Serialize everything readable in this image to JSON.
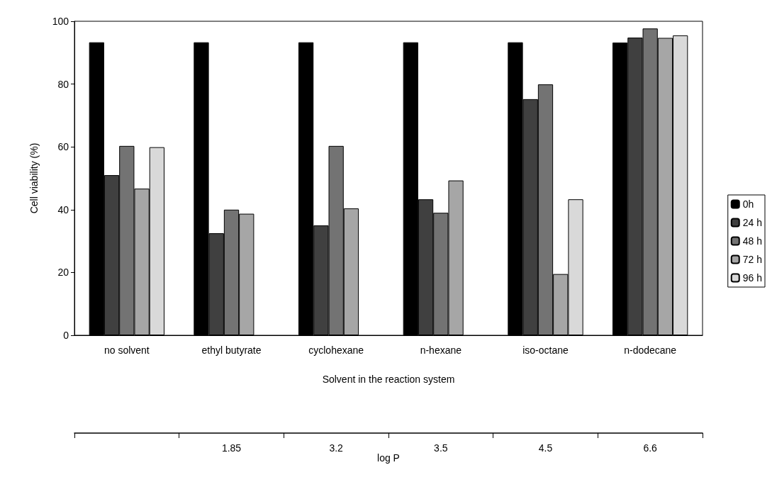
{
  "chart_data": {
    "type": "bar",
    "xlabel": "Solvent in the reaction system",
    "ylabel": "Cell viability (%)",
    "categories": [
      "no solvent",
      "ethyl butyrate",
      "cyclohexane",
      "n-hexane",
      "iso-octane",
      "n-dodecane"
    ],
    "annotations": [
      "1.85",
      "3.2",
      "3.5",
      "4.5",
      "6.6",
      "log P"
    ],
    "series": [
      {
        "name": "0h",
        "color": "#000000",
        "values": [
          93.3,
          93.3,
          93.3,
          93.3,
          93.3,
          93.2
        ]
      },
      {
        "name": "24 h",
        "color": "#404040",
        "values": [
          51,
          32.5,
          35,
          43.3,
          75.2,
          94.8
        ]
      },
      {
        "name": "48 h",
        "color": "#737373",
        "values": [
          60.3,
          40,
          60.3,
          39,
          79.9,
          97.7
        ]
      },
      {
        "name": "72 h",
        "color": "#a6a6a6",
        "values": [
          46.7,
          38.7,
          40.4,
          49.3,
          19.5,
          94.7
        ]
      },
      {
        "name": "96 h",
        "color": "#d9d9d9",
        "values": [
          59.9,
          null,
          null,
          null,
          43.3,
          95.5
        ]
      }
    ],
    "ylim": [
      0,
      100
    ],
    "yticks": [
      0,
      20,
      40,
      60,
      80,
      100
    ],
    "grid": false,
    "legend": "right"
  }
}
